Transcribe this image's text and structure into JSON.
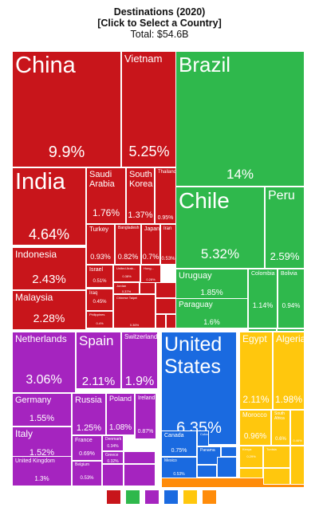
{
  "header": {
    "title": "Destinations (2020)",
    "subtitle": "[Click to Select a Country]",
    "total": "Total: $54.6B"
  },
  "colors": {
    "asia": "#c8151b",
    "americas_south": "#2fb84c",
    "europe": "#a524bf",
    "americas_north": "#1a6ae0",
    "africa": "#ffc70d",
    "oceania": "#ff8c0a"
  },
  "legend": [
    {
      "name": "asia-swatch",
      "color": "#c8151b"
    },
    {
      "name": "americas-south-swatch",
      "color": "#2fb84c"
    },
    {
      "name": "europe-swatch",
      "color": "#a524bf"
    },
    {
      "name": "americas-north-swatch",
      "color": "#1a6ae0"
    },
    {
      "name": "africa-swatch",
      "color": "#ffc70d"
    },
    {
      "name": "oceania-swatch",
      "color": "#ff8c0a"
    }
  ],
  "chart_data": {
    "type": "treemap",
    "title": "Destinations (2020)",
    "subtitle": "[Click to Select a Country]",
    "total": "Total: $54.6B",
    "tiles": [
      {
        "label": "China",
        "value": "9.9%",
        "group": "asia"
      },
      {
        "label": "Vietnam",
        "value": "5.25%",
        "group": "asia"
      },
      {
        "label": "India",
        "value": "4.64%",
        "group": "asia"
      },
      {
        "label": "Saudi Arabia",
        "value": "1.76%",
        "group": "asia"
      },
      {
        "label": "South Korea",
        "value": "1.37%",
        "group": "asia"
      },
      {
        "label": "Thailand",
        "value": "0.95%",
        "group": "asia"
      },
      {
        "label": "Indonesia",
        "value": "2.43%",
        "group": "asia"
      },
      {
        "label": "Turkey",
        "value": "0.93%",
        "group": "asia"
      },
      {
        "label": "Bangladesh",
        "value": "0.82%",
        "group": "asia"
      },
      {
        "label": "Japan",
        "value": "0.7%",
        "group": "asia"
      },
      {
        "label": "Iran",
        "value": "0.53%",
        "group": "asia"
      },
      {
        "label": "Israel",
        "value": "0.51%",
        "group": "asia"
      },
      {
        "label": "United Arab...",
        "value": "0.38%",
        "group": "asia"
      },
      {
        "label": "Hong...",
        "value": "0.28%",
        "group": "asia"
      },
      {
        "label": "Malaysia",
        "value": "2.28%",
        "group": "asia"
      },
      {
        "label": "Iraq",
        "value": "0.45%",
        "group": "asia"
      },
      {
        "label": "Jordan",
        "value": "0.37%",
        "group": "asia"
      },
      {
        "label": "Philippines",
        "value": "0.4%",
        "group": "asia"
      },
      {
        "label": "Chinese Taipei",
        "value": "0.36%",
        "group": "asia"
      },
      {
        "label": "Brazil",
        "value": "14%",
        "group": "americas_south"
      },
      {
        "label": "Chile",
        "value": "5.32%",
        "group": "americas_south"
      },
      {
        "label": "Peru",
        "value": "2.59%",
        "group": "americas_south"
      },
      {
        "label": "Uruguay",
        "value": "1.85%",
        "group": "americas_south"
      },
      {
        "label": "Colombia",
        "value": "1.14%",
        "group": "americas_south"
      },
      {
        "label": "Bolivia",
        "value": "0.94%",
        "group": "americas_south"
      },
      {
        "label": "Paraguay",
        "value": "1.6%",
        "group": "americas_south"
      },
      {
        "label": "Netherlands",
        "value": "3.06%",
        "group": "europe"
      },
      {
        "label": "Spain",
        "value": "2.11%",
        "group": "europe"
      },
      {
        "label": "Switzerland",
        "value": "1.9%",
        "group": "europe"
      },
      {
        "label": "Germany",
        "value": "1.55%",
        "group": "europe"
      },
      {
        "label": "Russia",
        "value": "1.25%",
        "group": "europe"
      },
      {
        "label": "Poland",
        "value": "1.08%",
        "group": "europe"
      },
      {
        "label": "Ireland",
        "value": "0.87%",
        "group": "europe"
      },
      {
        "label": "Italy",
        "value": "1.52%",
        "group": "europe"
      },
      {
        "label": "France",
        "value": "0.69%",
        "group": "europe"
      },
      {
        "label": "Denmark",
        "value": "0.34%",
        "group": "europe"
      },
      {
        "label": "Greece",
        "value": "0.32%",
        "group": "europe"
      },
      {
        "label": "United Kingdom",
        "value": "1.3%",
        "group": "europe"
      },
      {
        "label": "Belgium",
        "value": "0.53%",
        "group": "europe"
      },
      {
        "label": "United States",
        "value": "6.35%",
        "group": "americas_north"
      },
      {
        "label": "Canada",
        "value": "0.75%",
        "group": "americas_north"
      },
      {
        "label": "Cuba",
        "value": "",
        "group": "americas_north"
      },
      {
        "label": "Mexico",
        "value": "0.53%",
        "group": "americas_north"
      },
      {
        "label": "Panama",
        "value": "",
        "group": "americas_north"
      },
      {
        "label": "Egypt",
        "value": "2.11%",
        "group": "africa"
      },
      {
        "label": "Algeria",
        "value": "1.98%",
        "group": "africa"
      },
      {
        "label": "Morocco",
        "value": "0.96%",
        "group": "africa"
      },
      {
        "label": "South Africa",
        "value": "0.6%",
        "group": "africa"
      },
      {
        "label": "",
        "value": "0.46%",
        "group": "africa"
      },
      {
        "label": "Kenya",
        "value": "0.29%",
        "group": "africa"
      },
      {
        "label": "Tunisia",
        "value": "",
        "group": "africa"
      },
      {
        "label": "",
        "value": "0.29%",
        "group": "africa"
      },
      {
        "label": "",
        "value": "",
        "group": "oceania"
      }
    ]
  }
}
